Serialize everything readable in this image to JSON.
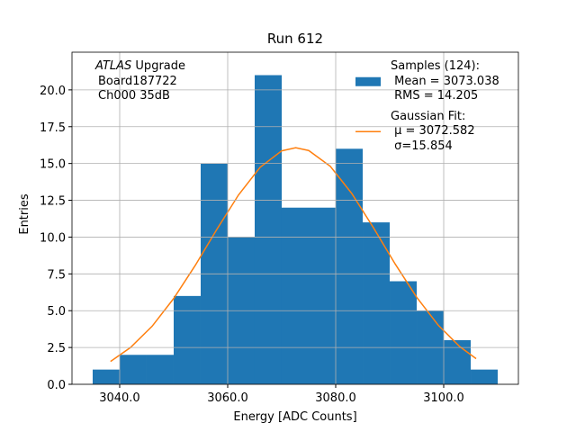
{
  "chart_data": {
    "type": "histogram",
    "title": "Run 612",
    "xlabel": "Energy [ADC Counts]",
    "ylabel": "Entries",
    "annotation": [
      "ATLAS",
      "Upgrade",
      "Board187722",
      "Ch000 35dB"
    ],
    "bins": [
      3035,
      3040,
      3045,
      3050,
      3055,
      3060,
      3065,
      3070,
      3075,
      3080,
      3085,
      3090,
      3095,
      3100,
      3105,
      3110
    ],
    "series": [
      {
        "name": "Samples (124):\n Mean = 3073.038\n RMS = 14.205",
        "type": "histogram",
        "color": "#1f77b4",
        "values": [
          1,
          2,
          2,
          6,
          15,
          10,
          21,
          12,
          12,
          16,
          11,
          7,
          5,
          3,
          1
        ]
      },
      {
        "name": "Gaussian Fit:\n μ = 3072.582\n σ=15.854",
        "type": "line",
        "color": "#ff7f0e",
        "x": [
          3038.3,
          3042,
          3046,
          3050,
          3054,
          3058,
          3062,
          3066,
          3070,
          3072.6,
          3075,
          3079,
          3083,
          3087,
          3091,
          3095,
          3099,
          3103,
          3106
        ],
        "values": [
          1.55,
          2.5,
          3.94,
          5.83,
          8.08,
          10.53,
          12.86,
          14.74,
          15.86,
          16.07,
          15.88,
          14.81,
          12.95,
          10.63,
          8.18,
          5.91,
          4.01,
          2.55,
          1.74
        ]
      }
    ],
    "xlim": [
      3031.17,
      3113.83
    ],
    "ylim": [
      0,
      22.56
    ],
    "xticks": [
      {
        "value": 3040,
        "label": "3040.0"
      },
      {
        "value": 3060,
        "label": "3060.0"
      },
      {
        "value": 3080,
        "label": "3080.0"
      },
      {
        "value": 3100,
        "label": "3100.0"
      }
    ],
    "yticks": [
      {
        "value": 0,
        "label": "0.0"
      },
      2.5,
      {
        "value": 5,
        "label": "5.0"
      },
      7.5,
      {
        "value": 10,
        "label": "10.0"
      },
      12.5,
      {
        "value": 15,
        "label": "15.0"
      },
      17.5,
      {
        "value": 20,
        "label": "20.0"
      }
    ],
    "grid": true,
    "legend": "upper right"
  }
}
